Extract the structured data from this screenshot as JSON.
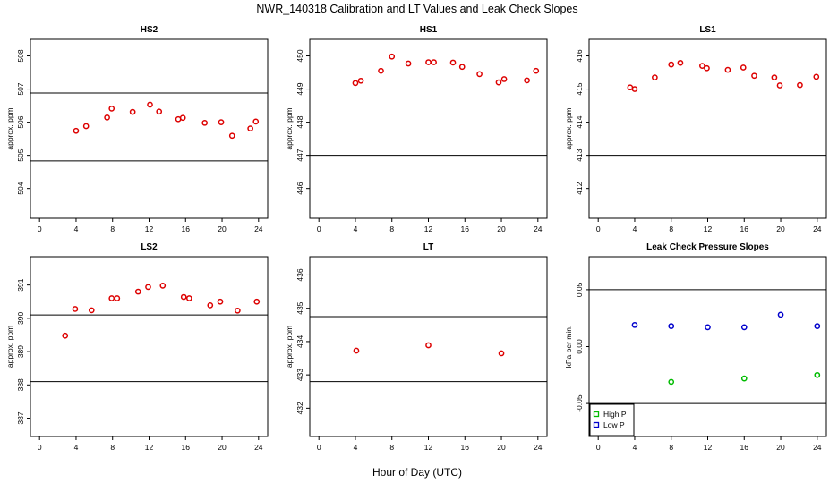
{
  "figure": {
    "title": "NWR_140318  Calibration and LT Values and Leak Check Slopes",
    "xlabel": "Hour of Day (UTC)"
  },
  "chart_data": [
    {
      "id": "hs2",
      "type": "scatter",
      "title": "HS2",
      "ylabel": "approx. ppm",
      "xlim": [
        -1,
        25
      ],
      "ylim": [
        503.1,
        508.5
      ],
      "xticks": [
        0,
        4,
        8,
        12,
        16,
        20,
        24
      ],
      "yticks": [
        504,
        505,
        506,
        507,
        508
      ],
      "hlines": [
        504.83,
        506.88
      ],
      "series": [
        {
          "color": "#dd0000",
          "x": [
            4,
            5.1,
            7.4,
            7.9,
            10.2,
            12.1,
            13.1,
            15.2,
            15.7,
            18.1,
            19.9,
            21.1,
            23.1,
            23.7
          ],
          "y": [
            505.74,
            505.88,
            506.14,
            506.41,
            506.31,
            506.53,
            506.32,
            506.09,
            506.13,
            505.98,
            506.0,
            505.59,
            505.81,
            506.02
          ]
        }
      ]
    },
    {
      "id": "hs1",
      "type": "scatter",
      "title": "HS1",
      "ylabel": "approx. ppm",
      "xlim": [
        -1,
        25
      ],
      "ylim": [
        445.1,
        450.5
      ],
      "xticks": [
        0,
        4,
        8,
        12,
        16,
        20,
        24
      ],
      "yticks": [
        446,
        447,
        448,
        449,
        450
      ],
      "hlines": [
        447.0,
        449.0
      ],
      "series": [
        {
          "color": "#dd0000",
          "x": [
            4,
            4.6,
            6.8,
            8,
            9.8,
            12,
            12.6,
            14.7,
            15.7,
            17.6,
            19.7,
            20.3,
            22.8,
            23.8
          ],
          "y": [
            449.18,
            449.25,
            449.55,
            449.98,
            449.77,
            449.81,
            449.81,
            449.8,
            449.67,
            449.45,
            449.2,
            449.3,
            449.26,
            449.55
          ]
        }
      ]
    },
    {
      "id": "ls1",
      "type": "scatter",
      "title": "LS1",
      "ylabel": "approx. ppm",
      "xlim": [
        -1,
        25
      ],
      "ylim": [
        411.1,
        416.5
      ],
      "xticks": [
        0,
        4,
        8,
        12,
        16,
        20,
        24
      ],
      "yticks": [
        412,
        413,
        414,
        415,
        416
      ],
      "hlines": [
        413.0,
        415.0
      ],
      "series": [
        {
          "color": "#dd0000",
          "x": [
            3.5,
            4,
            6.2,
            8,
            9,
            11.4,
            11.9,
            14.2,
            15.9,
            17.1,
            19.3,
            19.9,
            22.1,
            23.9
          ],
          "y": [
            415.05,
            415.0,
            415.35,
            415.74,
            415.79,
            415.7,
            415.63,
            415.58,
            415.65,
            415.4,
            415.35,
            415.11,
            415.12,
            415.37
          ]
        }
      ]
    },
    {
      "id": "ls2",
      "type": "scatter",
      "title": "LS2",
      "ylabel": "approx. ppm",
      "xlim": [
        -1,
        25
      ],
      "ylim": [
        386.45,
        391.85
      ],
      "xticks": [
        0,
        4,
        8,
        12,
        16,
        20,
        24
      ],
      "yticks": [
        387,
        388,
        389,
        390,
        391
      ],
      "hlines": [
        388.1,
        390.1
      ],
      "series": [
        {
          "color": "#dd0000",
          "x": [
            2.8,
            3.9,
            5.7,
            7.9,
            8.5,
            10.8,
            11.9,
            13.5,
            15.8,
            16.4,
            18.7,
            19.8,
            21.7,
            23.8
          ],
          "y": [
            389.48,
            390.28,
            390.24,
            390.6,
            390.6,
            390.8,
            390.94,
            390.98,
            390.64,
            390.6,
            390.39,
            390.5,
            390.23,
            390.5
          ]
        }
      ]
    },
    {
      "id": "lt",
      "type": "scatter",
      "title": "LT",
      "ylabel": "approx. ppm",
      "xlim": [
        -1,
        25
      ],
      "ylim": [
        431.15,
        436.55
      ],
      "xticks": [
        0,
        4,
        8,
        12,
        16,
        20,
        24
      ],
      "yticks": [
        432,
        433,
        434,
        435,
        436
      ],
      "hlines": [
        432.8,
        434.75
      ],
      "series": [
        {
          "color": "#dd0000",
          "x": [
            4.1,
            12,
            20
          ],
          "y": [
            433.73,
            433.89,
            433.65
          ]
        }
      ]
    },
    {
      "id": "leak",
      "type": "scatter",
      "title": "Leak Check Pressure Slopes",
      "ylabel": "kPa per min.",
      "xlim": [
        -1,
        25
      ],
      "ylim": [
        -0.079,
        0.079
      ],
      "xticks": [
        0,
        4,
        8,
        12,
        16,
        20,
        24
      ],
      "yticks": [
        -0.05,
        0.0,
        0.05
      ],
      "ytick_labels": [
        "-0.05",
        "0.00",
        "0.05"
      ],
      "hlines": [
        -0.05,
        0.05
      ],
      "series": [
        {
          "name": "High P",
          "color": "#00bb00",
          "x": [
            8,
            16,
            24
          ],
          "y": [
            -0.031,
            -0.028,
            -0.025
          ]
        },
        {
          "name": "Low P",
          "color": "#0000cc",
          "x": [
            4,
            8,
            12,
            16,
            20,
            24
          ],
          "y": [
            0.019,
            0.018,
            0.017,
            0.017,
            0.028,
            0.018
          ]
        }
      ],
      "legend": {
        "position": "bottom-left"
      }
    }
  ]
}
